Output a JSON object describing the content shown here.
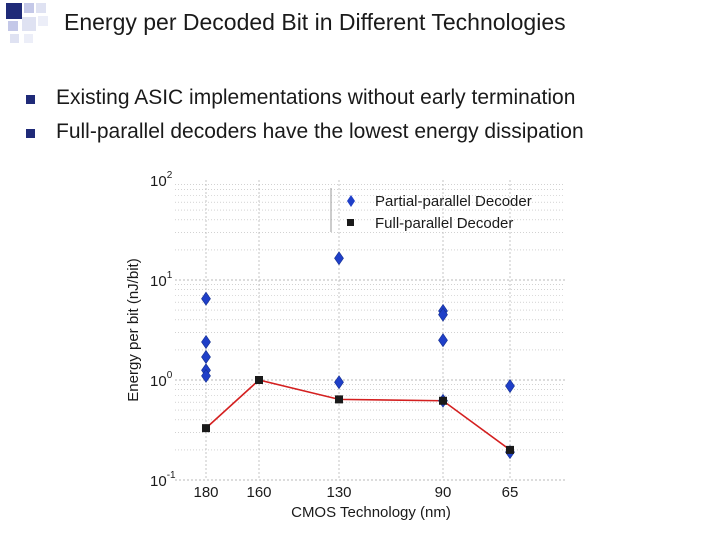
{
  "slide": {
    "title": "Energy per Decoded Bit in Different Technologies",
    "bullets": [
      "Existing ASIC implementations without early termination",
      "Full-parallel decoders have the lowest energy dissipation"
    ]
  },
  "colors": {
    "partial": "#1f3fc8",
    "full": "#1a1a1a",
    "full_line": "#d42020",
    "bullet": "#1f2a78",
    "grid": "#b8b8b8"
  },
  "chart_data": {
    "type": "scatter",
    "title": "",
    "xlabel": "CMOS Technology (nm)",
    "ylabel": "Energy per bit (nJ/bit)",
    "y_scale": "log",
    "ylim": [
      0.1,
      100
    ],
    "y_ticks": [
      {
        "value": 0.1,
        "base": "10",
        "exp": "-1"
      },
      {
        "value": 1,
        "base": "10",
        "exp": "0"
      },
      {
        "value": 10,
        "base": "10",
        "exp": "1"
      },
      {
        "value": 100,
        "base": "10",
        "exp": "2"
      }
    ],
    "categories": [
      "180",
      "160",
      "130",
      "90",
      "65"
    ],
    "grid": true,
    "legend": "top-right",
    "series": [
      {
        "name": "Partial-parallel Decoder",
        "marker": "diamond",
        "points": [
          {
            "x": "180",
            "y": 6.5
          },
          {
            "x": "180",
            "y": 2.4
          },
          {
            "x": "180",
            "y": 1.7
          },
          {
            "x": "180",
            "y": 1.25
          },
          {
            "x": "180",
            "y": 1.1
          },
          {
            "x": "130",
            "y": 16.5
          },
          {
            "x": "130",
            "y": 0.95
          },
          {
            "x": "90",
            "y": 4.9
          },
          {
            "x": "90",
            "y": 4.5
          },
          {
            "x": "90",
            "y": 2.5
          },
          {
            "x": "90",
            "y": 0.62
          },
          {
            "x": "65",
            "y": 0.87
          },
          {
            "x": "65",
            "y": 0.19
          }
        ]
      },
      {
        "name": "Full-parallel Decoder",
        "marker": "square",
        "line": true,
        "points": [
          {
            "x": "180",
            "y": 0.33
          },
          {
            "x": "160",
            "y": 1.0
          },
          {
            "x": "130",
            "y": 0.64
          },
          {
            "x": "90",
            "y": 0.62
          },
          {
            "x": "65",
            "y": 0.2
          }
        ]
      }
    ]
  }
}
